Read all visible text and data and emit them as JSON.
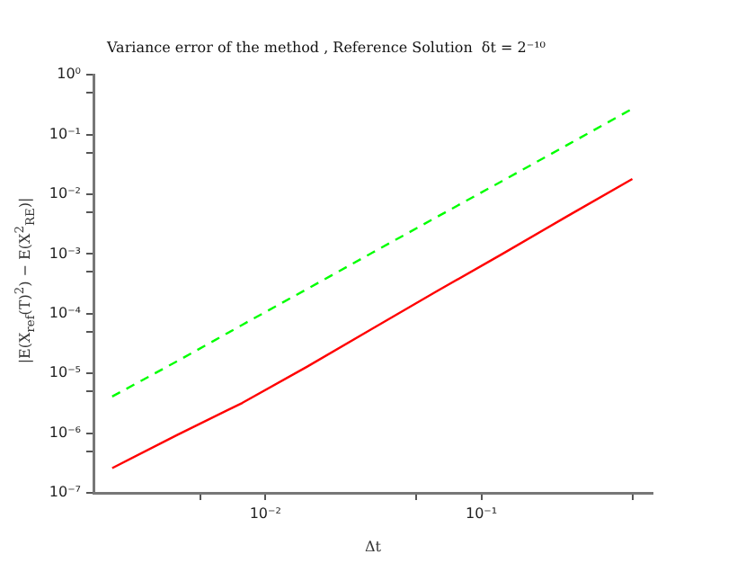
{
  "chart_data": {
    "type": "line",
    "title": "Variance error of the method , Reference Solution  δt = 2⁻¹⁰",
    "xlabel": "Δt",
    "ylabel": "|E(X$_{ref}$(T)$^{2}$) − E(X$^{2}$$_{RE}$)|",
    "x": [
      0.001953125,
      0.00390625,
      0.0078125,
      0.015625,
      0.03125,
      0.0625,
      0.125,
      0.25,
      0.5
    ],
    "series": [
      {
        "color": "#00ff00",
        "line_style": "dashed",
        "values": [
          4.1e-06,
          1.6e-05,
          6.5e-05,
          0.00026,
          0.00105,
          0.0042,
          0.0167,
          0.067,
          0.27
        ]
      },
      {
        "color": "#ff0000",
        "line_style": "solid",
        "values": [
          2.6e-07,
          9.3e-07,
          3.2e-06,
          1.3e-05,
          5.6e-05,
          0.00024,
          0.001,
          0.0043,
          0.018
        ]
      }
    ],
    "log": "xy",
    "grid": false,
    "legend": false,
    "marker": "none",
    "xlim": [
      0.0016,
      0.62
    ],
    "ylim": [
      1e-07,
      1
    ],
    "xticks": [
      {
        "value": 0.005,
        "label": null
      },
      {
        "value": 0.01,
        "label": "10⁻²"
      },
      {
        "value": 0.05,
        "label": null
      },
      {
        "value": 0.1,
        "label": "10⁻¹"
      },
      {
        "value": 0.5,
        "label": null
      }
    ],
    "yticks": [
      {
        "value": 1e-07,
        "label": "10⁻⁷"
      },
      {
        "value": 5e-07,
        "label": null
      },
      {
        "value": 1e-06,
        "label": "10⁻⁶"
      },
      {
        "value": 5e-06,
        "label": null
      },
      {
        "value": 1e-05,
        "label": "10⁻⁵"
      },
      {
        "value": 5e-05,
        "label": null
      },
      {
        "value": 0.0001,
        "label": "10⁻⁴"
      },
      {
        "value": 0.0005,
        "label": null
      },
      {
        "value": 0.001,
        "label": "10⁻³"
      },
      {
        "value": 0.005,
        "label": null
      },
      {
        "value": 0.01,
        "label": "10⁻²"
      },
      {
        "value": 0.05,
        "label": null
      },
      {
        "value": 0.1,
        "label": "10⁻¹"
      },
      {
        "value": 0.5,
        "label": null
      },
      {
        "value": 1,
        "label": "10⁰"
      }
    ]
  }
}
